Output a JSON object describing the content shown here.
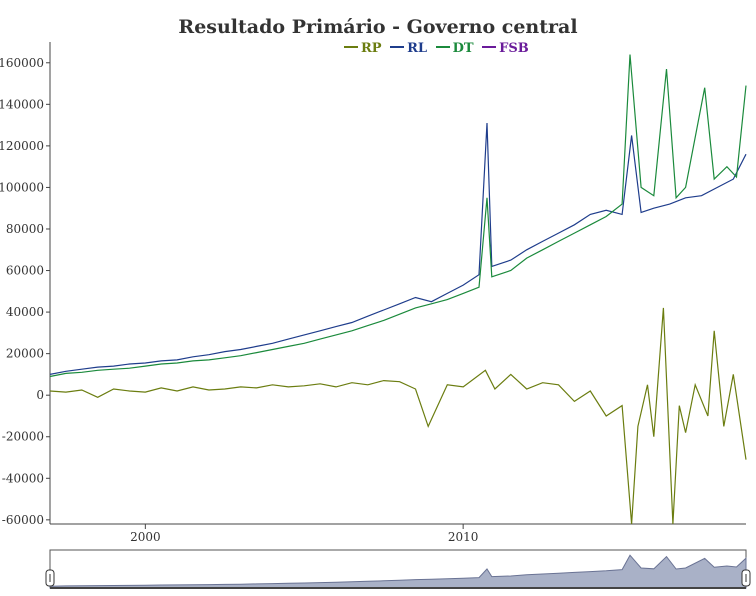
{
  "chart_data": {
    "type": "line",
    "title": "Resultado Primário - Governo central",
    "xlabel": "",
    "ylabel": "",
    "x_range": [
      1997.0,
      2018.9
    ],
    "x_ticks": [
      2000,
      2010
    ],
    "ylim": [
      -62000,
      170000
    ],
    "y_ticks": [
      -60000,
      -40000,
      -20000,
      0,
      20000,
      40000,
      60000,
      80000,
      100000,
      120000,
      140000,
      160000
    ],
    "grid": false,
    "legend_position": "top-center",
    "range_selector": true,
    "series": [
      {
        "name": "RP",
        "color": "#6b7d10",
        "points": [
          [
            1997.0,
            2000
          ],
          [
            1997.5,
            1500
          ],
          [
            1998.0,
            2500
          ],
          [
            1998.5,
            -1000
          ],
          [
            1999.0,
            3000
          ],
          [
            1999.5,
            2000
          ],
          [
            2000.0,
            1500
          ],
          [
            2000.5,
            3500
          ],
          [
            2001.0,
            2000
          ],
          [
            2001.5,
            4000
          ],
          [
            2002.0,
            2500
          ],
          [
            2002.5,
            3000
          ],
          [
            2003.0,
            4000
          ],
          [
            2003.5,
            3500
          ],
          [
            2004.0,
            5000
          ],
          [
            2004.5,
            4000
          ],
          [
            2005.0,
            4500
          ],
          [
            2005.5,
            5500
          ],
          [
            2006.0,
            4000
          ],
          [
            2006.5,
            6000
          ],
          [
            2007.0,
            5000
          ],
          [
            2007.5,
            7000
          ],
          [
            2008.0,
            6500
          ],
          [
            2008.5,
            3000
          ],
          [
            2008.9,
            -15000
          ],
          [
            2009.5,
            5000
          ],
          [
            2010.0,
            4000
          ],
          [
            2010.7,
            12000
          ],
          [
            2011.0,
            3000
          ],
          [
            2011.5,
            10000
          ],
          [
            2012.0,
            3000
          ],
          [
            2012.5,
            6000
          ],
          [
            2013.0,
            5000
          ],
          [
            2013.5,
            -3000
          ],
          [
            2014.0,
            2000
          ],
          [
            2014.5,
            -10000
          ],
          [
            2015.0,
            -5000
          ],
          [
            2015.3,
            -62000
          ],
          [
            2015.5,
            -15000
          ],
          [
            2015.8,
            5000
          ],
          [
            2016.0,
            -20000
          ],
          [
            2016.3,
            42000
          ],
          [
            2016.6,
            -62000
          ],
          [
            2016.8,
            -5000
          ],
          [
            2017.0,
            -18000
          ],
          [
            2017.3,
            5000
          ],
          [
            2017.7,
            -10000
          ],
          [
            2017.9,
            31000
          ],
          [
            2018.2,
            -15000
          ],
          [
            2018.5,
            10000
          ],
          [
            2018.9,
            -31000
          ]
        ]
      },
      {
        "name": "RL",
        "color": "#1f3d8c",
        "points": [
          [
            1997.0,
            10000
          ],
          [
            1997.5,
            11500
          ],
          [
            1998.0,
            12500
          ],
          [
            1998.5,
            13500
          ],
          [
            1999.0,
            14000
          ],
          [
            1999.5,
            15000
          ],
          [
            2000.0,
            15500
          ],
          [
            2000.5,
            16500
          ],
          [
            2001.0,
            17000
          ],
          [
            2001.5,
            18500
          ],
          [
            2002.0,
            19500
          ],
          [
            2002.5,
            21000
          ],
          [
            2003.0,
            22000
          ],
          [
            2003.5,
            23500
          ],
          [
            2004.0,
            25000
          ],
          [
            2004.5,
            27000
          ],
          [
            2005.0,
            29000
          ],
          [
            2005.5,
            31000
          ],
          [
            2006.0,
            33000
          ],
          [
            2006.5,
            35000
          ],
          [
            2007.0,
            38000
          ],
          [
            2007.5,
            41000
          ],
          [
            2008.0,
            44000
          ],
          [
            2008.5,
            47000
          ],
          [
            2009.0,
            45000
          ],
          [
            2009.5,
            49000
          ],
          [
            2010.0,
            53000
          ],
          [
            2010.5,
            58000
          ],
          [
            2010.75,
            131000
          ],
          [
            2010.9,
            62000
          ],
          [
            2011.5,
            65000
          ],
          [
            2012.0,
            70000
          ],
          [
            2012.5,
            74000
          ],
          [
            2013.0,
            78000
          ],
          [
            2013.5,
            82000
          ],
          [
            2014.0,
            87000
          ],
          [
            2014.5,
            89000
          ],
          [
            2015.0,
            87000
          ],
          [
            2015.3,
            125000
          ],
          [
            2015.6,
            88000
          ],
          [
            2016.0,
            90000
          ],
          [
            2016.5,
            92000
          ],
          [
            2017.0,
            95000
          ],
          [
            2017.5,
            96000
          ],
          [
            2018.0,
            100000
          ],
          [
            2018.5,
            104000
          ],
          [
            2018.9,
            116000
          ]
        ]
      },
      {
        "name": "DT",
        "color": "#1b8a3c",
        "points": [
          [
            1997.0,
            9000
          ],
          [
            1997.5,
            10500
          ],
          [
            1998.0,
            11000
          ],
          [
            1998.5,
            12000
          ],
          [
            1999.0,
            12500
          ],
          [
            1999.5,
            13000
          ],
          [
            2000.0,
            14000
          ],
          [
            2000.5,
            15000
          ],
          [
            2001.0,
            15500
          ],
          [
            2001.5,
            16500
          ],
          [
            2002.0,
            17000
          ],
          [
            2002.5,
            18000
          ],
          [
            2003.0,
            19000
          ],
          [
            2003.5,
            20500
          ],
          [
            2004.0,
            22000
          ],
          [
            2004.5,
            23500
          ],
          [
            2005.0,
            25000
          ],
          [
            2005.5,
            27000
          ],
          [
            2006.0,
            29000
          ],
          [
            2006.5,
            31000
          ],
          [
            2007.0,
            33500
          ],
          [
            2007.5,
            36000
          ],
          [
            2008.0,
            39000
          ],
          [
            2008.5,
            42000
          ],
          [
            2009.0,
            44000
          ],
          [
            2009.5,
            46000
          ],
          [
            2010.0,
            49000
          ],
          [
            2010.5,
            52000
          ],
          [
            2010.75,
            95000
          ],
          [
            2010.9,
            57000
          ],
          [
            2011.5,
            60000
          ],
          [
            2012.0,
            66000
          ],
          [
            2012.5,
            70000
          ],
          [
            2013.0,
            74000
          ],
          [
            2013.5,
            78000
          ],
          [
            2014.0,
            82000
          ],
          [
            2014.5,
            86000
          ],
          [
            2015.0,
            92000
          ],
          [
            2015.25,
            164000
          ],
          [
            2015.6,
            100000
          ],
          [
            2016.0,
            96000
          ],
          [
            2016.4,
            157000
          ],
          [
            2016.7,
            95000
          ],
          [
            2017.0,
            100000
          ],
          [
            2017.6,
            148000
          ],
          [
            2017.9,
            104000
          ],
          [
            2018.3,
            110000
          ],
          [
            2018.6,
            105000
          ],
          [
            2018.9,
            149000
          ]
        ]
      },
      {
        "name": "FSB",
        "color": "#6a1b9a",
        "points": []
      }
    ]
  }
}
